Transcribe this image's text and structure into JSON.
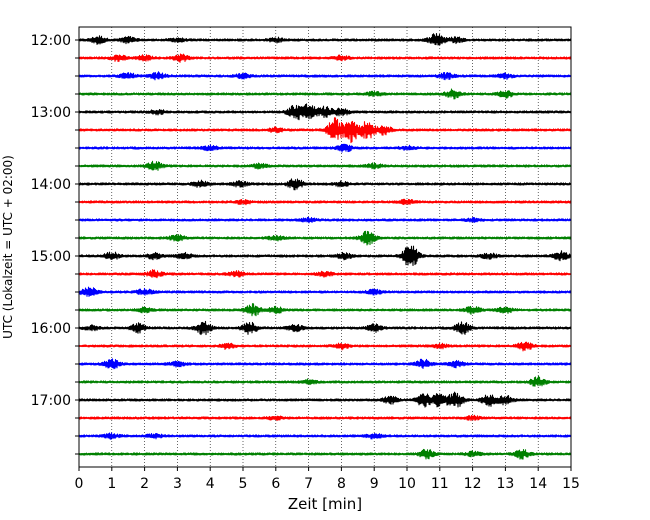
{
  "chart_data": {
    "type": "line",
    "title": "",
    "xlabel": "Zeit  [min]",
    "ylabel": "UTC (Lokalzeit = UTC + 02:00)",
    "xlim": [
      0,
      15
    ],
    "x_ticks": [
      0,
      1,
      2,
      3,
      4,
      5,
      6,
      7,
      8,
      9,
      10,
      11,
      12,
      13,
      14,
      15
    ],
    "y_tick_labels": [
      "12:00",
      "13:00",
      "14:00",
      "15:00",
      "16:00",
      "17:00"
    ],
    "grid": "vertical dotted at each minute",
    "trace_colors": [
      "#000000",
      "#ff0000",
      "#0000ff",
      "#008000"
    ],
    "traces": [
      {
        "start": "12:00",
        "events": [
          [
            0.6,
            0.5
          ],
          [
            1.5,
            0.4
          ],
          [
            3.0,
            0.25
          ],
          [
            6.0,
            0.3
          ],
          [
            10.9,
            1.0
          ],
          [
            11.5,
            0.4
          ]
        ]
      },
      {
        "start": "12:15",
        "events": [
          [
            1.2,
            0.4
          ],
          [
            2.0,
            0.35
          ],
          [
            3.1,
            0.5
          ],
          [
            8.0,
            0.3
          ]
        ]
      },
      {
        "start": "12:30",
        "events": [
          [
            1.5,
            0.4
          ],
          [
            2.4,
            0.45
          ],
          [
            5.0,
            0.3
          ],
          [
            11.2,
            0.4
          ],
          [
            13.0,
            0.35
          ]
        ]
      },
      {
        "start": "12:45",
        "events": [
          [
            11.4,
            0.6
          ],
          [
            13.0,
            0.5
          ],
          [
            9.0,
            0.3
          ]
        ]
      },
      {
        "start": "13:00",
        "events": [
          [
            6.6,
            1.0
          ],
          [
            7.0,
            1.1
          ],
          [
            7.5,
            0.7
          ],
          [
            8.0,
            0.5
          ],
          [
            2.4,
            0.3
          ]
        ]
      },
      {
        "start": "13:15",
        "events": [
          [
            7.8,
            1.6
          ],
          [
            8.3,
            1.7
          ],
          [
            8.8,
            1.2
          ],
          [
            9.3,
            0.6
          ],
          [
            6.0,
            0.3
          ]
        ]
      },
      {
        "start": "13:30",
        "events": [
          [
            8.1,
            0.5
          ],
          [
            4.0,
            0.3
          ],
          [
            10.0,
            0.3
          ]
        ]
      },
      {
        "start": "13:45",
        "events": [
          [
            2.3,
            0.6
          ],
          [
            5.5,
            0.3
          ],
          [
            9.0,
            0.3
          ]
        ]
      },
      {
        "start": "14:00",
        "events": [
          [
            6.6,
            0.8
          ],
          [
            3.7,
            0.4
          ],
          [
            4.9,
            0.4
          ],
          [
            8.0,
            0.3
          ]
        ]
      },
      {
        "start": "14:15",
        "events": [
          [
            5.0,
            0.3
          ],
          [
            10.0,
            0.3
          ]
        ]
      },
      {
        "start": "14:30",
        "events": [
          [
            7.0,
            0.25
          ],
          [
            12.0,
            0.25
          ]
        ]
      },
      {
        "start": "14:45",
        "events": [
          [
            8.8,
            1.0
          ],
          [
            3.0,
            0.4
          ],
          [
            6.0,
            0.3
          ]
        ]
      },
      {
        "start": "15:00",
        "events": [
          [
            10.1,
            1.8
          ],
          [
            1.0,
            0.5
          ],
          [
            2.3,
            0.4
          ],
          [
            3.2,
            0.4
          ],
          [
            8.1,
            0.4
          ],
          [
            12.5,
            0.4
          ],
          [
            14.7,
            0.6
          ]
        ]
      },
      {
        "start": "15:15",
        "events": [
          [
            2.3,
            0.5
          ],
          [
            4.8,
            0.35
          ],
          [
            7.5,
            0.3
          ]
        ]
      },
      {
        "start": "15:30",
        "events": [
          [
            0.3,
            0.7
          ],
          [
            2.0,
            0.4
          ],
          [
            9.0,
            0.3
          ]
        ]
      },
      {
        "start": "15:45",
        "events": [
          [
            5.3,
            0.9
          ],
          [
            6.0,
            0.4
          ],
          [
            12.0,
            0.5
          ],
          [
            13.0,
            0.4
          ],
          [
            2.0,
            0.3
          ]
        ]
      },
      {
        "start": "16:00",
        "events": [
          [
            1.8,
            0.6
          ],
          [
            3.8,
            0.9
          ],
          [
            5.2,
            0.8
          ],
          [
            6.6,
            0.5
          ],
          [
            9.0,
            0.5
          ],
          [
            11.7,
            0.9
          ],
          [
            0.4,
            0.3
          ]
        ]
      },
      {
        "start": "16:15",
        "events": [
          [
            4.5,
            0.4
          ],
          [
            8.0,
            0.4
          ],
          [
            13.6,
            0.6
          ],
          [
            11.0,
            0.3
          ]
        ]
      },
      {
        "start": "16:30",
        "events": [
          [
            1.0,
            0.7
          ],
          [
            3.0,
            0.3
          ],
          [
            10.5,
            0.6
          ],
          [
            11.5,
            0.4
          ]
        ]
      },
      {
        "start": "16:45",
        "events": [
          [
            14.0,
            0.7
          ],
          [
            7.0,
            0.3
          ]
        ]
      },
      {
        "start": "17:00",
        "events": [
          [
            10.5,
            0.9
          ],
          [
            11.0,
            1.0
          ],
          [
            11.5,
            1.1
          ],
          [
            12.5,
            0.8
          ],
          [
            13.0,
            0.6
          ],
          [
            9.5,
            0.5
          ]
        ]
      },
      {
        "start": "17:15",
        "events": [
          [
            6.0,
            0.25
          ],
          [
            12.0,
            0.25
          ]
        ]
      },
      {
        "start": "17:30",
        "events": [
          [
            1.0,
            0.35
          ],
          [
            2.3,
            0.3
          ],
          [
            9.0,
            0.3
          ]
        ]
      },
      {
        "start": "17:45",
        "events": [
          [
            10.6,
            0.6
          ],
          [
            13.5,
            0.6
          ],
          [
            12.0,
            0.3
          ]
        ]
      }
    ]
  }
}
